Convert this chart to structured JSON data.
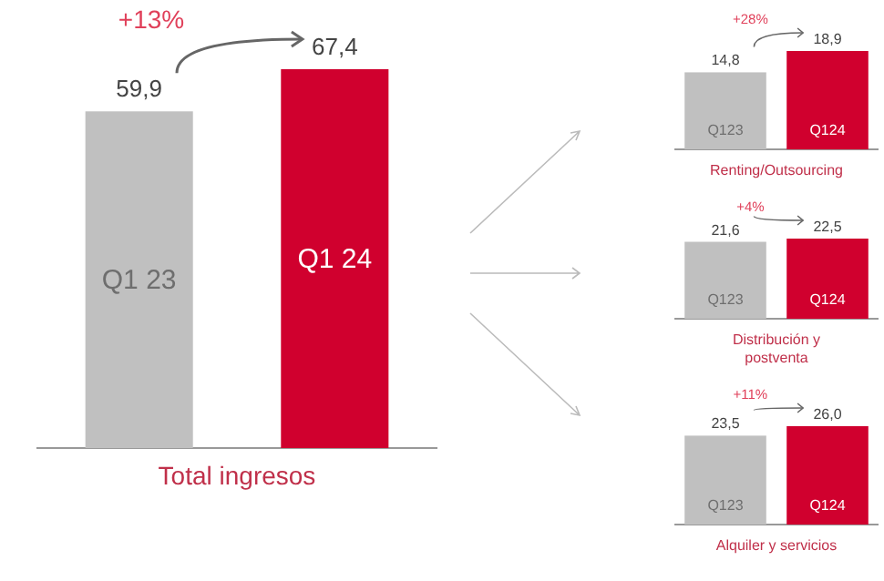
{
  "chart_data": [
    {
      "type": "bar",
      "categories": [
        "Q1 23",
        "Q1 24"
      ],
      "values": [
        59.9,
        67.4
      ],
      "colors": [
        "#c0c0c0",
        "#d0002e"
      ],
      "value_labels": [
        "59,9",
        "67,4"
      ],
      "xlabel": "Total ingresos",
      "annotations": [
        "+13%"
      ]
    },
    {
      "type": "bar",
      "categories": [
        "Q123",
        "Q124"
      ],
      "values": [
        14.8,
        18.9
      ],
      "colors": [
        "#c0c0c0",
        "#d0002e"
      ],
      "value_labels": [
        "14,8",
        "18,9"
      ],
      "xlabel": "Renting/Outsourcing",
      "annotations": [
        "+28%"
      ]
    },
    {
      "type": "bar",
      "categories": [
        "Q123",
        "Q124"
      ],
      "values": [
        21.6,
        22.5
      ],
      "colors": [
        "#c0c0c0",
        "#d0002e"
      ],
      "value_labels": [
        "21,6",
        "22,5"
      ],
      "xlabel": "Distribución y\npostventa",
      "annotations": [
        "+4%"
      ]
    },
    {
      "type": "bar",
      "categories": [
        "Q123",
        "Q124"
      ],
      "values": [
        23.5,
        26.0
      ],
      "colors": [
        "#c0c0c0",
        "#d0002e"
      ],
      "value_labels": [
        "23,5",
        "26,0"
      ],
      "xlabel": "Alquiler y servicios",
      "annotations": [
        "+11%"
      ]
    }
  ]
}
